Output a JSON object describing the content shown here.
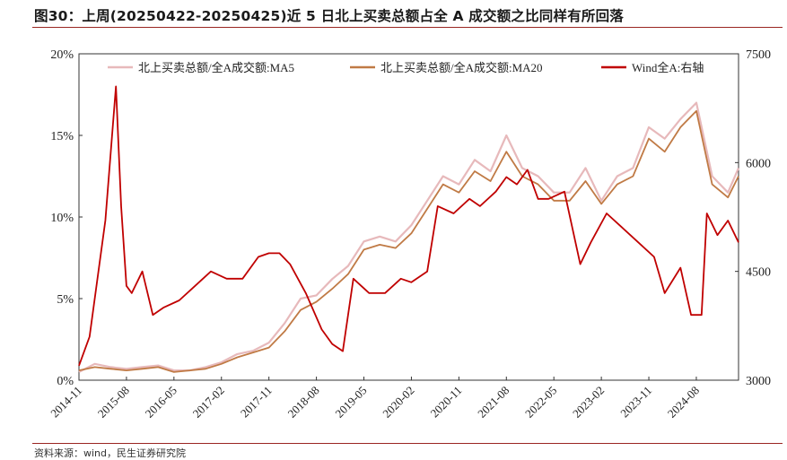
{
  "figure": {
    "title": "图30：上周(20250422-20250425)近 5 日北上买卖总额占全 A 成交额之比同样有所回落",
    "source": "资料来源：wind，民生证券研究院"
  },
  "chart_data": {
    "type": "line",
    "title": "图30：上周(20250422-20250425)近 5 日北上买卖总额占全 A 成交额之比同样有所回落",
    "xlabel": "",
    "ylabel_left": "",
    "ylabel_right": "",
    "x_ticks": [
      "2014-11",
      "2015-08",
      "2016-05",
      "2017-02",
      "2017-11",
      "2018-08",
      "2019-05",
      "2020-02",
      "2020-11",
      "2021-08",
      "2022-05",
      "2023-02",
      "2023-11",
      "2024-08"
    ],
    "y_left_ticks": [
      "0%",
      "5%",
      "10%",
      "15%",
      "20%"
    ],
    "y_right_ticks": [
      "3000",
      "4500",
      "6000",
      "7500"
    ],
    "y_left_range": [
      0,
      20
    ],
    "y_right_range": [
      3000,
      7500
    ],
    "x_range": [
      "2014-11",
      "2025-04"
    ],
    "grid": false,
    "legend_position": "top",
    "colors": {
      "ma5": "#e7b9bb",
      "ma20": "#c07a45",
      "wind": "#c00000"
    },
    "series": [
      {
        "name": "北上买卖总额/全A成交额:MA5",
        "axis": "left",
        "x": [
          "2014-11",
          "2015-02",
          "2015-05",
          "2015-08",
          "2015-11",
          "2016-02",
          "2016-05",
          "2016-08",
          "2016-11",
          "2017-02",
          "2017-05",
          "2017-08",
          "2017-11",
          "2018-02",
          "2018-05",
          "2018-08",
          "2018-11",
          "2019-02",
          "2019-05",
          "2019-08",
          "2019-11",
          "2020-02",
          "2020-05",
          "2020-08",
          "2020-11",
          "2021-02",
          "2021-05",
          "2021-08",
          "2021-11",
          "2022-02",
          "2022-05",
          "2022-08",
          "2022-11",
          "2023-02",
          "2023-05",
          "2023-08",
          "2023-11",
          "2024-02",
          "2024-05",
          "2024-08",
          "2024-11",
          "2025-02",
          "2025-04"
        ],
        "values": [
          0.5,
          1.0,
          0.8,
          0.7,
          0.8,
          0.9,
          0.6,
          0.6,
          0.8,
          1.1,
          1.6,
          1.8,
          2.3,
          3.5,
          5.0,
          5.2,
          6.2,
          7.0,
          8.5,
          8.8,
          8.5,
          9.5,
          11.0,
          12.5,
          12.0,
          13.5,
          12.8,
          15.0,
          13.0,
          12.5,
          11.5,
          11.5,
          13.0,
          11.0,
          12.5,
          13.0,
          15.5,
          14.8,
          16.0,
          17.0,
          12.5,
          11.5,
          13.0
        ]
      },
      {
        "name": "北上买卖总额/全A成交额:MA20",
        "axis": "left",
        "x": [
          "2014-11",
          "2015-02",
          "2015-05",
          "2015-08",
          "2015-11",
          "2016-02",
          "2016-05",
          "2016-08",
          "2016-11",
          "2017-02",
          "2017-05",
          "2017-08",
          "2017-11",
          "2018-02",
          "2018-05",
          "2018-08",
          "2018-11",
          "2019-02",
          "2019-05",
          "2019-08",
          "2019-11",
          "2020-02",
          "2020-05",
          "2020-08",
          "2020-11",
          "2021-02",
          "2021-05",
          "2021-08",
          "2021-11",
          "2022-02",
          "2022-05",
          "2022-08",
          "2022-11",
          "2023-02",
          "2023-05",
          "2023-08",
          "2023-11",
          "2024-02",
          "2024-05",
          "2024-08",
          "2024-11",
          "2025-02",
          "2025-04"
        ],
        "values": [
          0.6,
          0.8,
          0.7,
          0.6,
          0.7,
          0.8,
          0.5,
          0.6,
          0.7,
          1.0,
          1.4,
          1.7,
          2.0,
          3.0,
          4.3,
          4.8,
          5.6,
          6.5,
          8.0,
          8.3,
          8.1,
          9.0,
          10.5,
          12.0,
          11.5,
          12.8,
          12.2,
          14.0,
          12.5,
          12.0,
          11.0,
          11.0,
          12.2,
          10.8,
          12.0,
          12.5,
          14.8,
          14.0,
          15.5,
          16.5,
          12.0,
          11.2,
          12.5
        ]
      },
      {
        "name": "Wind全A:右轴",
        "axis": "right",
        "x": [
          "2014-11",
          "2015-01",
          "2015-04",
          "2015-06",
          "2015-07",
          "2015-08",
          "2015-09",
          "2015-11",
          "2016-01",
          "2016-03",
          "2016-06",
          "2016-09",
          "2016-12",
          "2017-03",
          "2017-06",
          "2017-09",
          "2017-11",
          "2018-01",
          "2018-03",
          "2018-06",
          "2018-09",
          "2018-11",
          "2019-01",
          "2019-03",
          "2019-06",
          "2019-09",
          "2019-12",
          "2020-02",
          "2020-05",
          "2020-07",
          "2020-10",
          "2021-01",
          "2021-03",
          "2021-06",
          "2021-08",
          "2021-10",
          "2021-12",
          "2022-02",
          "2022-04",
          "2022-07",
          "2022-10",
          "2022-12",
          "2023-03",
          "2023-06",
          "2023-09",
          "2023-12",
          "2024-02",
          "2024-05",
          "2024-07",
          "2024-09",
          "2024-10",
          "2024-12",
          "2025-02",
          "2025-04"
        ],
        "values": [
          3200,
          3600,
          5200,
          7050,
          5400,
          4300,
          4200,
          4500,
          3900,
          4000,
          4100,
          4300,
          4500,
          4400,
          4400,
          4700,
          4750,
          4750,
          4600,
          4200,
          3700,
          3500,
          3400,
          4400,
          4200,
          4200,
          4400,
          4350,
          4500,
          5400,
          5300,
          5500,
          5400,
          5600,
          5800,
          5700,
          5900,
          5500,
          5500,
          5600,
          4600,
          4900,
          5300,
          5100,
          4900,
          4700,
          4200,
          4550,
          3900,
          3900,
          5300,
          5000,
          5200,
          4900
        ]
      }
    ]
  }
}
